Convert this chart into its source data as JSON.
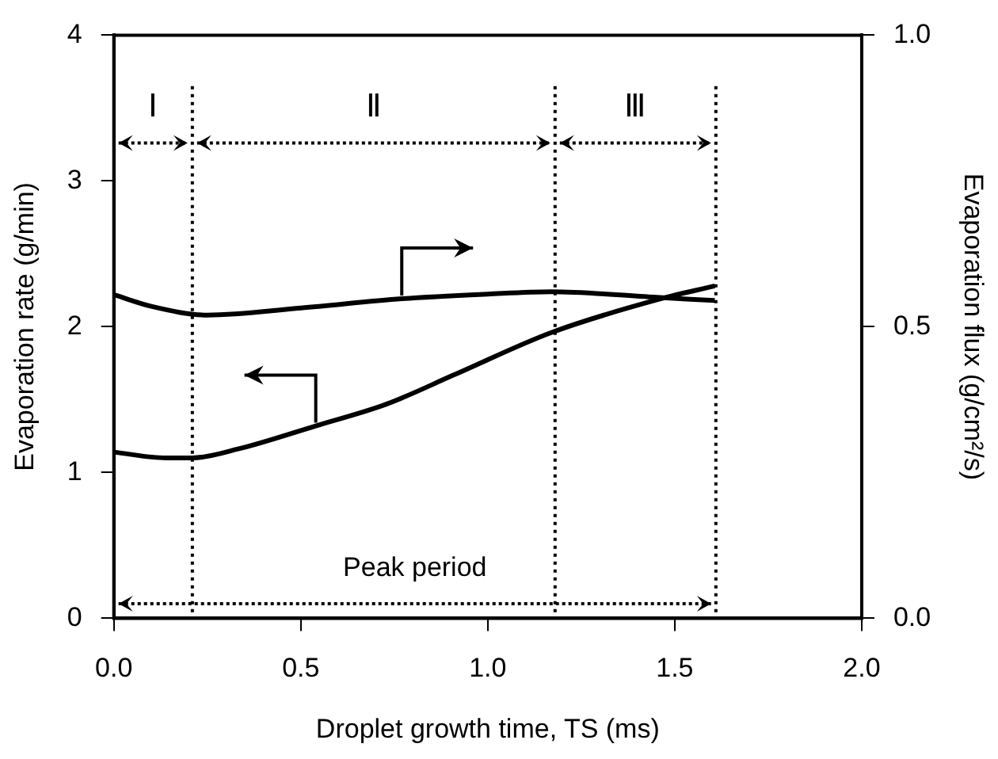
{
  "chart_data": {
    "type": "line",
    "xlabel": "Droplet growth time, TS (ms)",
    "ylabel": "Evaporation rate (g/min)",
    "y2label": "Evaporation flux (g/cm²/s)",
    "xlim": [
      0,
      2
    ],
    "xticks": [
      {
        "value": 0,
        "label": "0.0"
      },
      {
        "value": 0.5,
        "label": "0.5"
      },
      {
        "value": 1,
        "label": "1.0"
      },
      {
        "value": 1.5,
        "label": "1.5"
      },
      {
        "value": 2,
        "label": "2.0"
      }
    ],
    "ylim": [
      0,
      4
    ],
    "yticks": [
      0,
      1,
      2,
      3,
      4
    ],
    "y2lim": [
      0,
      1
    ],
    "y2ticks": [
      {
        "value": 0,
        "label": "0.0"
      },
      {
        "value": 0.5,
        "label": "0.5"
      },
      {
        "value": 1,
        "label": "1.0"
      }
    ],
    "marker": "none",
    "line_style": "solid",
    "series": [
      {
        "color": "#000000",
        "axis": "y2",
        "x": [
          0,
          0.1,
          0.25,
          0.5,
          0.77,
          1.0,
          1.17,
          1.46,
          1.607
        ],
        "values": [
          0.555,
          0.535,
          0.52,
          0.532,
          0.548,
          0.556,
          0.56,
          0.55,
          0.545
        ]
      },
      {
        "color": "#000000",
        "axis": "y",
        "x": [
          0,
          0.14,
          0.21,
          0.33,
          0.54,
          0.73,
          0.91,
          1.17,
          1.46,
          1.607
        ],
        "values": [
          1.14,
          1.1,
          1.1,
          1.16,
          1.32,
          1.47,
          1.67,
          1.96,
          2.19,
          2.28
        ]
      }
    ],
    "ref_lines": [
      {
        "axis": "x",
        "value": 0.21,
        "line_style": "dotted",
        "color": "#000000"
      },
      {
        "axis": "x",
        "value": 1.18,
        "line_style": "dotted",
        "color": "#000000"
      },
      {
        "axis": "x",
        "value": 1.61,
        "line_style": "dotted",
        "color": "#000000"
      }
    ],
    "annotations": [
      "Ⅰ",
      "Ⅱ",
      "Ⅲ",
      "Peak period"
    ]
  }
}
